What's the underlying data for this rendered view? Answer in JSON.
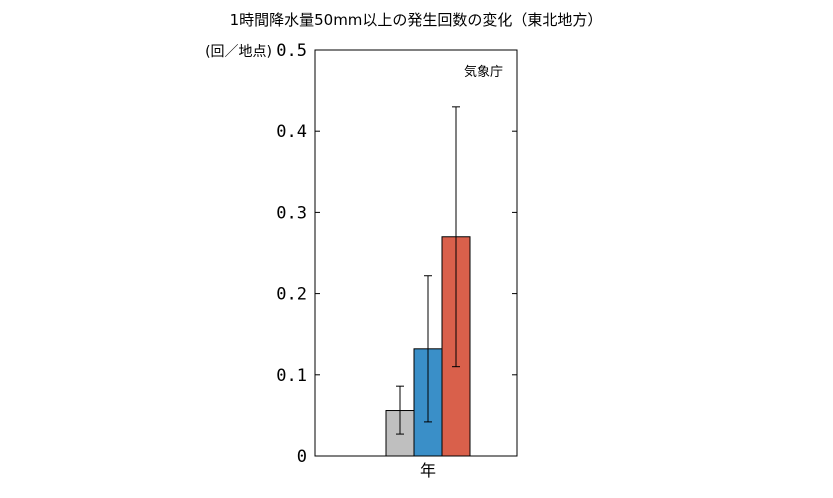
{
  "chart_data": {
    "type": "bar",
    "title": "1時間降水量50mm以上の発生回数の変化（東北地方）",
    "ylabel": "(回／地点)",
    "annotation": "気象庁",
    "categories": [
      "年"
    ],
    "ylim": [
      0,
      0.5
    ],
    "yticks": [
      0,
      0.1,
      0.2,
      0.3,
      0.4,
      0.5
    ],
    "ytick_labels": [
      "0",
      "0.1",
      "0.2",
      "0.3",
      "0.4",
      "0.5"
    ],
    "grid": false,
    "series": [
      {
        "values": [
          0.056
        ],
        "error_low": [
          0.027
        ],
        "error_high": [
          0.086
        ],
        "color": "#bfbfbf"
      },
      {
        "values": [
          0.132
        ],
        "error_low": [
          0.042
        ],
        "error_high": [
          0.222
        ],
        "color": "#3a8fc8"
      },
      {
        "values": [
          0.27
        ],
        "error_low": [
          0.11
        ],
        "error_high": [
          0.43
        ],
        "color": "#d9604b"
      }
    ]
  }
}
